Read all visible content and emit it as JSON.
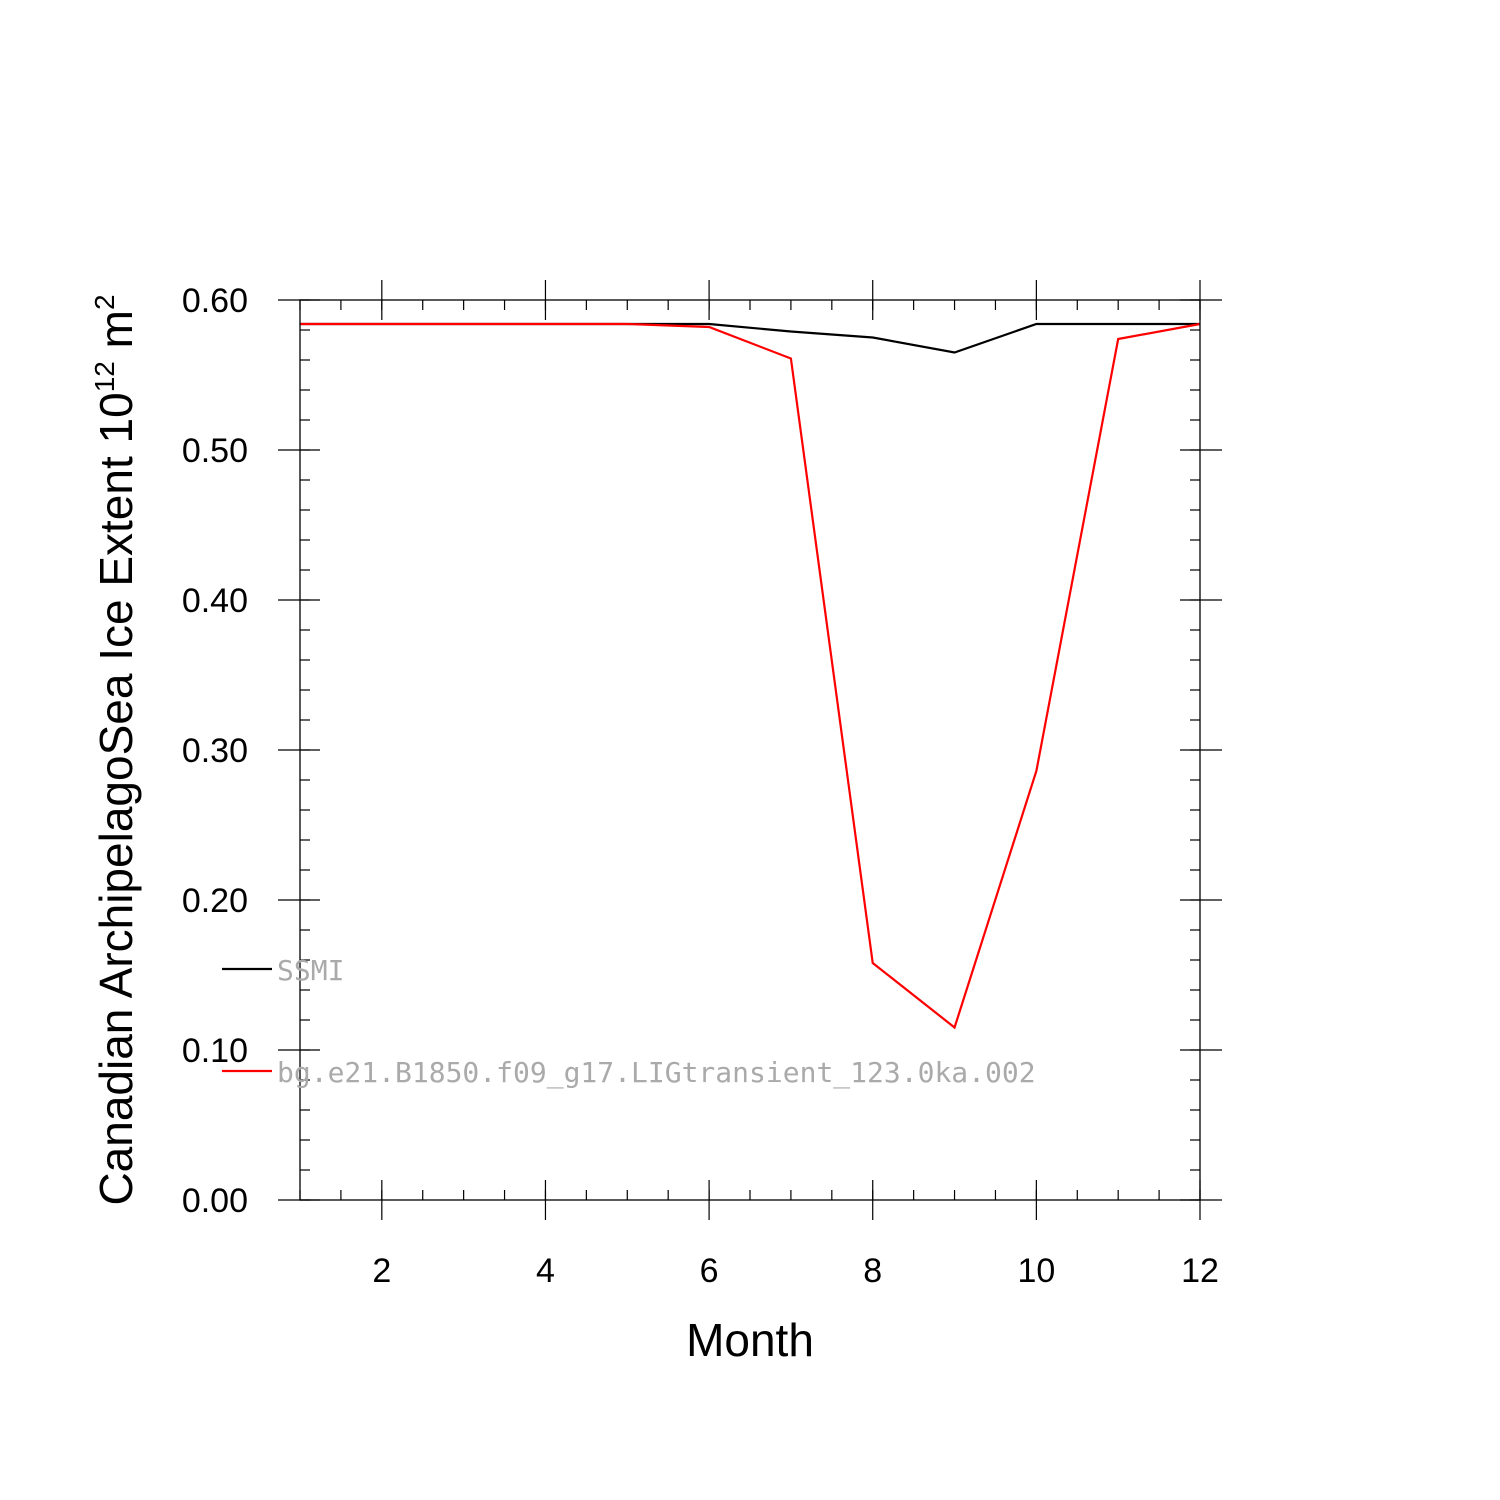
{
  "chart_data": {
    "type": "line",
    "xlabel": "Month",
    "ylabel": {
      "main": "Canadian ArchipelagoSea Ice Extent 10",
      "exp": "12",
      "unit": " m",
      "unit_exp": "2"
    },
    "xlim": [
      1,
      12
    ],
    "ylim": [
      0,
      0.6
    ],
    "x_ticks": [
      2,
      4,
      6,
      8,
      10,
      12
    ],
    "y_ticks": [
      "0.00",
      "0.10",
      "0.20",
      "0.30",
      "0.40",
      "0.50",
      "0.60"
    ],
    "grid": false,
    "legend_position": "left-lower",
    "x": [
      1,
      2,
      3,
      4,
      5,
      6,
      7,
      8,
      9,
      10,
      11,
      12
    ],
    "series": [
      {
        "name": "SSMI",
        "color": "#000000",
        "values": [
          0.584,
          0.584,
          0.584,
          0.584,
          0.584,
          0.584,
          0.579,
          0.575,
          0.565,
          0.584,
          0.584,
          0.584
        ]
      },
      {
        "name": "bg.e21.B1850.f09_g17.LIGtransient_123.0ka.002",
        "color": "#ff0000",
        "values": [
          0.584,
          0.584,
          0.584,
          0.584,
          0.584,
          0.582,
          0.561,
          0.158,
          0.115,
          0.286,
          0.574,
          0.584
        ]
      }
    ]
  }
}
